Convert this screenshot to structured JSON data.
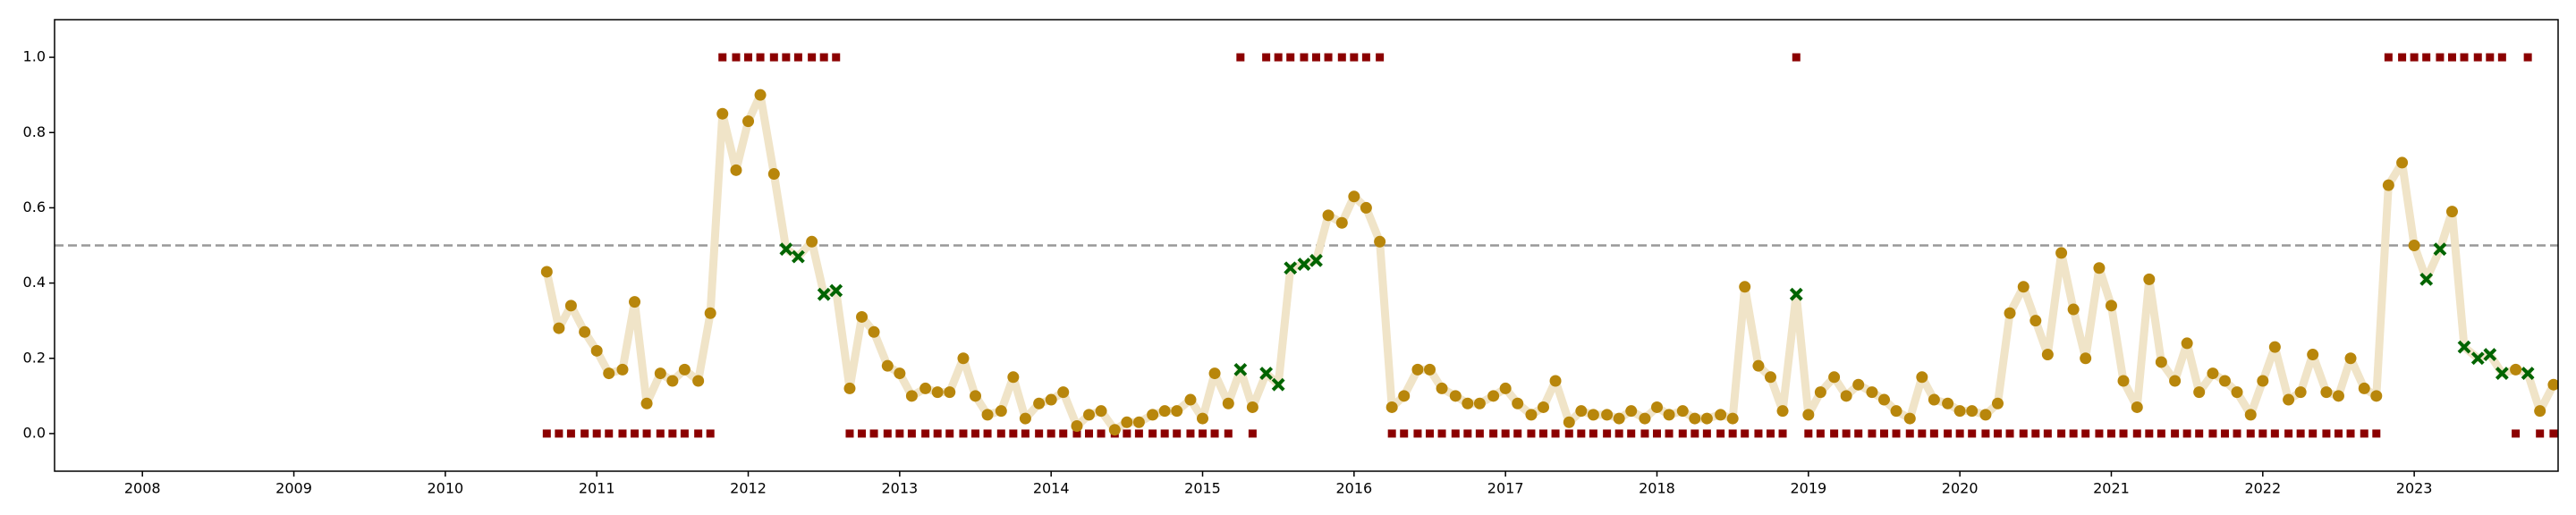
{
  "chart_data": {
    "type": "line",
    "x": [
      2010.67,
      2010.75,
      2010.83,
      2010.92,
      2011.0,
      2011.08,
      2011.17,
      2011.25,
      2011.33,
      2011.42,
      2011.5,
      2011.58,
      2011.67,
      2011.75,
      2011.83,
      2011.92,
      2012.0,
      2012.08,
      2012.17,
      2012.25,
      2012.33,
      2012.42,
      2012.5,
      2012.58,
      2012.67,
      2012.75,
      2012.83,
      2012.92,
      2013.0,
      2013.08,
      2013.17,
      2013.25,
      2013.33,
      2013.42,
      2013.5,
      2013.58,
      2013.67,
      2013.75,
      2013.83,
      2013.92,
      2014.0,
      2014.08,
      2014.17,
      2014.25,
      2014.33,
      2014.42,
      2014.5,
      2014.58,
      2014.67,
      2014.75,
      2014.83,
      2014.92,
      2015.0,
      2015.08,
      2015.17,
      2015.25,
      2015.33,
      2015.42,
      2015.5,
      2015.58,
      2015.67,
      2015.75,
      2015.83,
      2015.92,
      2016.0,
      2016.08,
      2016.17,
      2016.25,
      2016.33,
      2016.42,
      2016.5,
      2016.58,
      2016.67,
      2016.75,
      2016.83,
      2016.92,
      2017.0,
      2017.08,
      2017.17,
      2017.25,
      2017.33,
      2017.42,
      2017.5,
      2017.58,
      2017.67,
      2017.75,
      2017.83,
      2017.92,
      2018.0,
      2018.08,
      2018.17,
      2018.25,
      2018.33,
      2018.42,
      2018.5,
      2018.58,
      2018.67,
      2018.75,
      2018.83,
      2018.92,
      2019.0,
      2019.08,
      2019.17,
      2019.25,
      2019.33,
      2019.42,
      2019.5,
      2019.58,
      2019.67,
      2019.75,
      2019.83,
      2019.92,
      2020.0,
      2020.08,
      2020.17,
      2020.25,
      2020.33,
      2020.42,
      2020.5,
      2020.58,
      2020.67,
      2020.75,
      2020.83,
      2020.92,
      2021.0,
      2021.08,
      2021.17,
      2021.25,
      2021.33,
      2021.42,
      2021.5,
      2021.58,
      2021.67,
      2021.75,
      2021.83,
      2021.92,
      2022.0,
      2022.08,
      2022.17,
      2022.25,
      2022.33,
      2022.42,
      2022.5,
      2022.58,
      2022.67,
      2022.75,
      2022.83,
      2022.92,
      2023.0,
      2023.08,
      2023.17,
      2023.25,
      2023.33,
      2023.42,
      2023.5,
      2023.58,
      2023.67,
      2023.75,
      2023.83,
      2023.92
    ],
    "series": [
      {
        "color": "#b8860b",
        "line_color": "#f0e4c8",
        "miss_color": "#006400",
        "marker": "circle",
        "values": [
          0.43,
          0.28,
          0.34,
          0.27,
          0.22,
          0.16,
          0.17,
          0.35,
          0.08,
          0.16,
          0.14,
          0.17,
          0.14,
          0.32,
          0.85,
          0.7,
          0.83,
          0.9,
          0.69,
          0.49,
          0.47,
          0.51,
          0.37,
          0.38,
          0.12,
          0.31,
          0.27,
          0.18,
          0.16,
          0.1,
          0.12,
          0.11,
          0.11,
          0.2,
          0.1,
          0.05,
          0.06,
          0.15,
          0.04,
          0.08,
          0.09,
          0.11,
          0.02,
          0.05,
          0.06,
          0.01,
          0.03,
          0.03,
          0.05,
          0.06,
          0.06,
          0.09,
          0.04,
          0.16,
          0.08,
          0.17,
          0.07,
          0.16,
          0.13,
          0.44,
          0.45,
          0.46,
          0.58,
          0.56,
          0.63,
          0.6,
          0.51,
          0.07,
          0.1,
          0.17,
          0.17,
          0.12,
          0.1,
          0.08,
          0.08,
          0.1,
          0.12,
          0.08,
          0.05,
          0.07,
          0.14,
          0.03,
          0.06,
          0.05,
          0.05,
          0.04,
          0.06,
          0.04,
          0.07,
          0.05,
          0.06,
          0.04,
          0.04,
          0.05,
          0.04,
          0.39,
          0.18,
          0.15,
          0.06,
          0.37,
          0.05,
          0.11,
          0.15,
          0.1,
          0.13,
          0.11,
          0.09,
          0.06,
          0.04,
          0.15,
          0.09,
          0.08,
          0.06,
          0.06,
          0.05,
          0.08,
          0.32,
          0.39,
          0.3,
          0.21,
          0.48,
          0.33,
          0.2,
          0.44,
          0.34,
          0.14,
          0.07,
          0.41,
          0.19,
          0.14,
          0.24,
          0.11,
          0.16,
          0.14,
          0.11,
          0.05,
          0.14,
          0.23,
          0.09,
          0.11,
          0.21,
          0.11,
          0.1,
          0.2,
          0.12,
          0.1,
          0.66,
          0.72,
          0.5,
          0.41,
          0.49,
          0.59,
          0.23,
          0.2,
          0.21,
          0.16,
          0.17,
          0.16,
          0.06,
          0.13
        ]
      },
      {
        "color": "#8b0000",
        "marker": "square",
        "values": [
          0,
          0,
          0,
          0,
          0,
          0,
          0,
          0,
          0,
          0,
          0,
          0,
          0,
          0,
          1,
          1,
          1,
          1,
          1,
          1,
          1,
          1,
          1,
          1,
          0,
          0,
          0,
          0,
          0,
          0,
          0,
          0,
          0,
          0,
          0,
          0,
          0,
          0,
          0,
          0,
          0,
          0,
          0,
          0,
          0,
          0,
          0,
          0,
          0,
          0,
          0,
          0,
          0,
          0,
          0,
          1,
          0,
          1,
          1,
          1,
          1,
          1,
          1,
          1,
          1,
          1,
          1,
          0,
          0,
          0,
          0,
          0,
          0,
          0,
          0,
          0,
          0,
          0,
          0,
          0,
          0,
          0,
          0,
          0,
          0,
          0,
          0,
          0,
          0,
          0,
          0,
          0,
          0,
          0,
          0,
          0,
          0,
          0,
          0,
          1,
          0,
          0,
          0,
          0,
          0,
          0,
          0,
          0,
          0,
          0,
          0,
          0,
          0,
          0,
          0,
          0,
          0,
          0,
          0,
          0,
          0,
          0,
          0,
          0,
          0,
          0,
          0,
          0,
          0,
          0,
          0,
          0,
          0,
          0,
          0,
          0,
          0,
          0,
          0,
          0,
          0,
          0,
          0,
          0,
          0,
          0,
          1,
          1,
          1,
          1,
          1,
          1,
          1,
          1,
          1,
          1,
          0,
          1,
          0,
          0
        ]
      }
    ],
    "hline": 0.5,
    "xlim": [
      2007.42,
      2023.95
    ],
    "xticks": [
      2008,
      2009,
      2010,
      2011,
      2012,
      2013,
      2014,
      2015,
      2016,
      2017,
      2018,
      2019,
      2020,
      2021,
      2022,
      2023
    ],
    "ylim": [
      -0.1,
      1.1
    ],
    "yticks": [
      {
        "value": 0,
        "label": "0.0"
      },
      {
        "value": 0.2,
        "label": "0.2"
      },
      {
        "value": 0.4,
        "label": "0.4"
      },
      {
        "value": 0.6,
        "label": "0.6"
      },
      {
        "value": 0.8,
        "label": "0.8"
      },
      {
        "value": 1,
        "label": "1.0"
      }
    ]
  }
}
